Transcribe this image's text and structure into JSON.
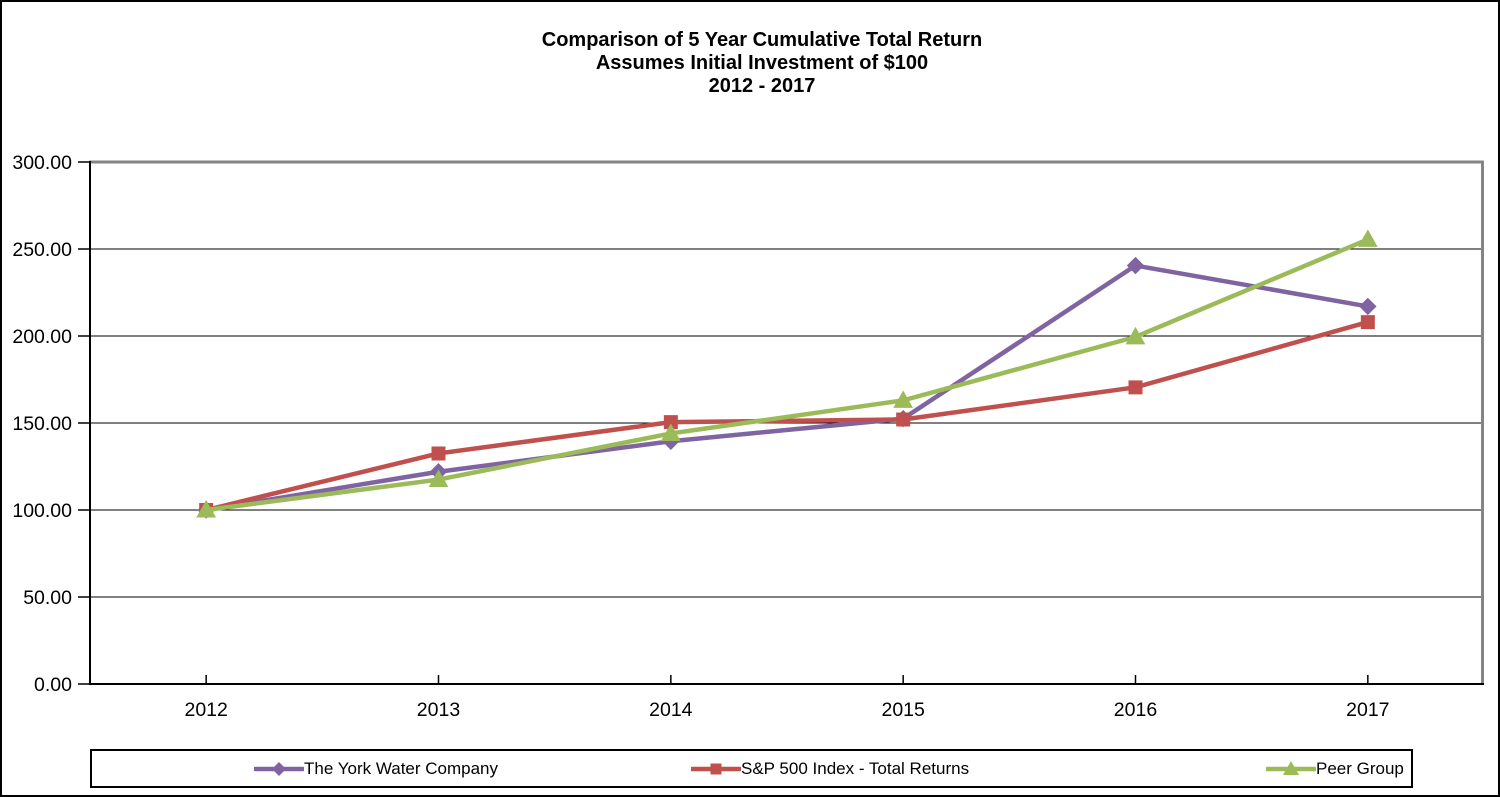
{
  "chart_data": {
    "type": "line",
    "title_lines": [
      "Comparison of 5 Year Cumulative Total Return",
      "Assumes Initial Investment of $100",
      "2012 - 2017"
    ],
    "categories": [
      "2012",
      "2013",
      "2014",
      "2015",
      "2016",
      "2017"
    ],
    "series": [
      {
        "name": "The York Water Company",
        "marker": "diamond",
        "color": "#8064A2",
        "values": [
          100,
          122,
          139.5,
          152.5,
          240.5,
          217
        ]
      },
      {
        "name": "S&P 500 Index - Total Returns",
        "marker": "square",
        "color": "#C0504D",
        "values": [
          100,
          132.5,
          150.5,
          152,
          170.5,
          208
        ]
      },
      {
        "name": "Peer Group",
        "marker": "triangle",
        "color": "#9BBB59",
        "values": [
          100,
          117.5,
          144,
          163,
          199.5,
          255.5
        ]
      }
    ],
    "y_axis": {
      "min": 0,
      "max": 300,
      "step": 50,
      "tick_labels_top_to_bottom": [
        "300.00",
        "250.00",
        "200.00",
        "150.00",
        "100.00",
        "50.00",
        "0.00"
      ]
    },
    "x_axis": {
      "tick_labels": [
        "2012",
        "2013",
        "2014",
        "2015",
        "2016",
        "2017"
      ]
    },
    "grid": true,
    "legend_position": "bottom",
    "colors": {
      "axis": "#000000",
      "gridline": "#000000",
      "plot_border": "#858585",
      "background": "#FFFFFF",
      "frame_border": "#000000"
    }
  }
}
